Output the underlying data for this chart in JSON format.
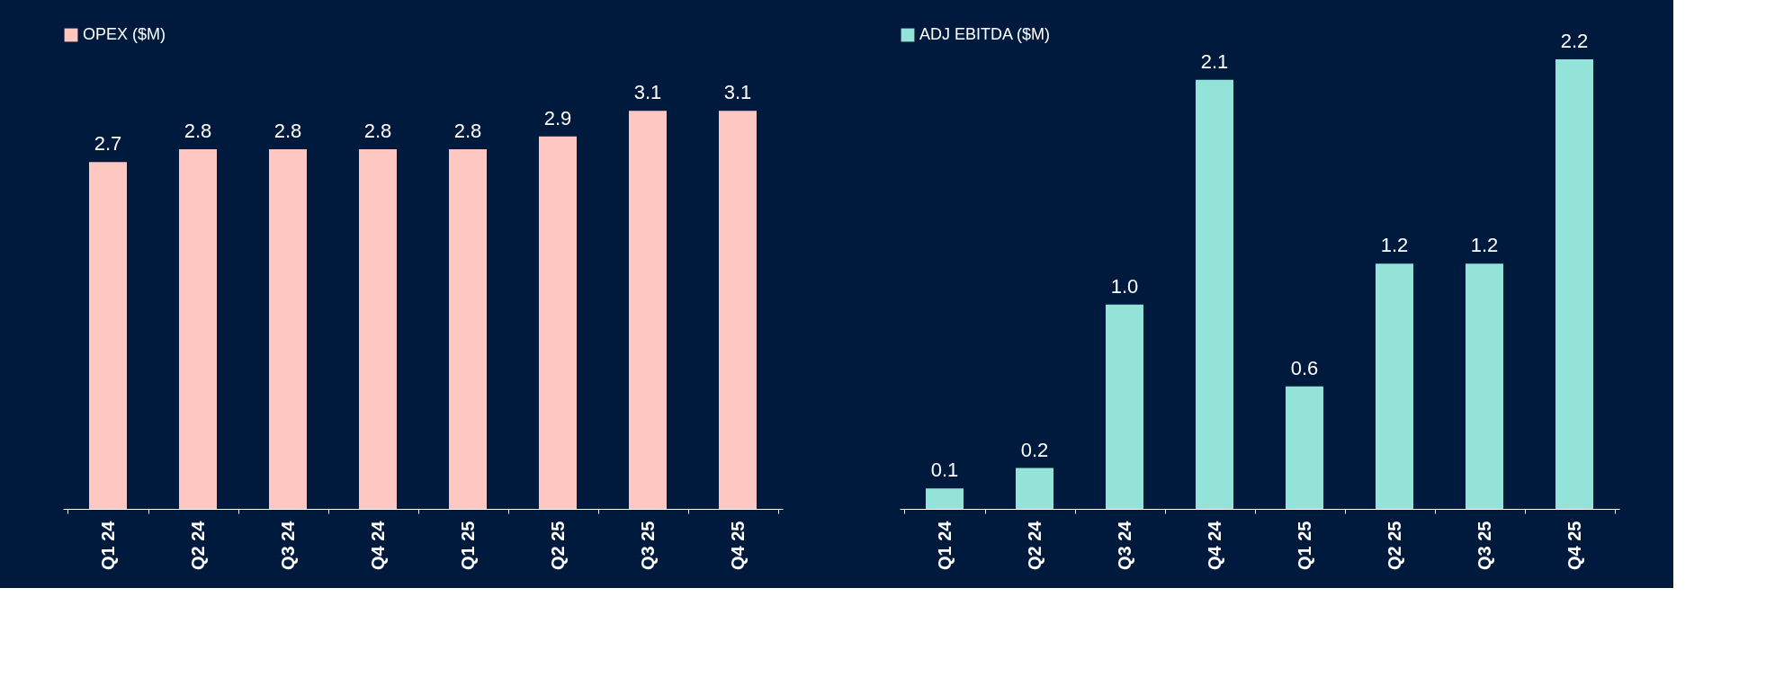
{
  "chart_data": [
    {
      "type": "bar",
      "categories": [
        "Q1 24",
        "Q2 24",
        "Q3 24",
        "Q4 24",
        "Q1 25",
        "Q2 25",
        "Q3 25",
        "Q4 25"
      ],
      "series": [
        {
          "name": "OPEX ($M)",
          "color": "#ffc7c2",
          "values": [
            2.7,
            2.8,
            2.8,
            2.8,
            2.8,
            2.9,
            3.1,
            3.1
          ],
          "value_labels": [
            "2.7",
            "2.8",
            "2.8",
            "2.8",
            "2.8",
            "2.9",
            "3.1",
            "3.1"
          ]
        }
      ],
      "legend": "top left"
    },
    {
      "type": "bar",
      "categories": [
        "Q1 24",
        "Q2 24",
        "Q3 24",
        "Q4 24",
        "Q1 25",
        "Q2 25",
        "Q3 25",
        "Q4 25"
      ],
      "series": [
        {
          "name": "ADJ EBITDA ($M)",
          "color": "#93e3d8",
          "values": [
            0.1,
            0.2,
            1.0,
            2.1,
            0.6,
            1.2,
            1.2,
            2.2
          ],
          "value_labels": [
            "0.1",
            "0.2",
            "1.0",
            "2.1",
            "0.6",
            "1.2",
            "1.2",
            "2.2"
          ]
        }
      ],
      "legend": "top left"
    }
  ]
}
